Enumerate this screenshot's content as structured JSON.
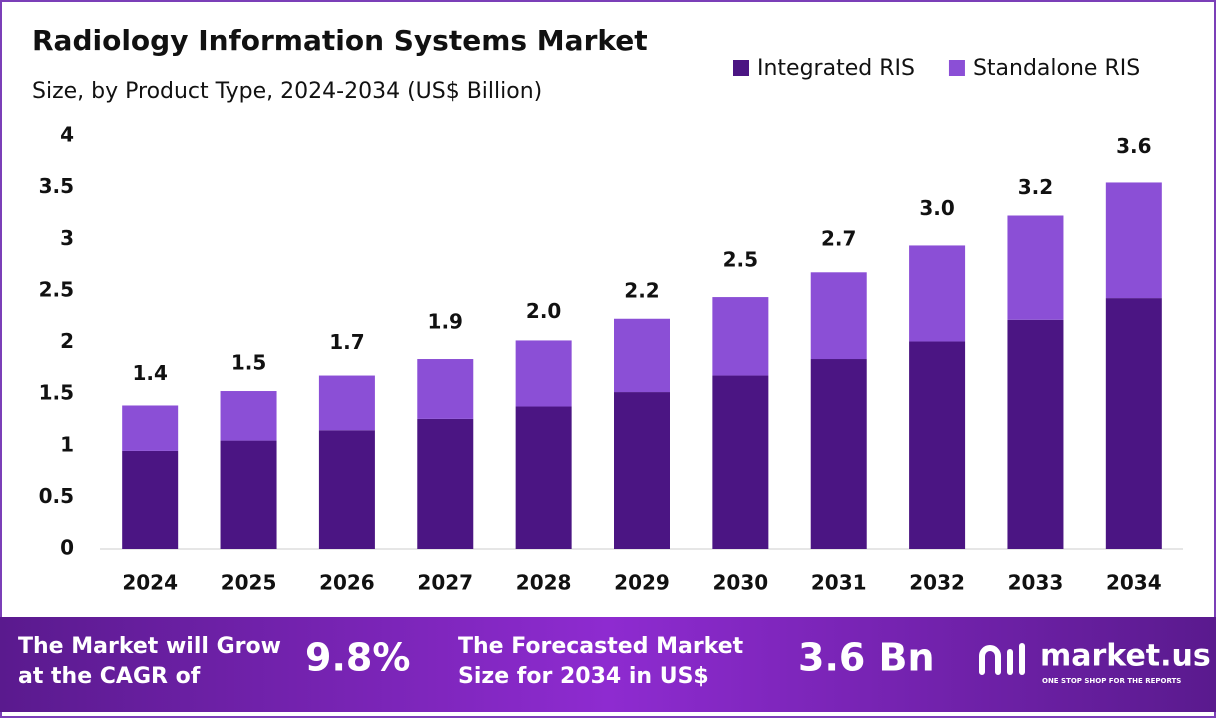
{
  "chart_data": {
    "type": "stacked_bar",
    "title": "Radiology Information Systems Market",
    "subtitle": "Size, by Product Type, 2024-2034 (US$ Billion)",
    "categories": [
      "2024",
      "2025",
      "2026",
      "2027",
      "2028",
      "2029",
      "2030",
      "2031",
      "2032",
      "2033",
      "2034"
    ],
    "series": [
      {
        "name": "Integrated RIS",
        "color": "#4b1583",
        "values": [
          0.95,
          1.05,
          1.15,
          1.26,
          1.38,
          1.52,
          1.68,
          1.84,
          2.01,
          2.22,
          2.43
        ]
      },
      {
        "name": "Standalone RIS",
        "color": "#8b4fd6",
        "values": [
          0.44,
          0.48,
          0.53,
          0.58,
          0.64,
          0.71,
          0.76,
          0.84,
          0.93,
          1.01,
          1.12
        ]
      }
    ],
    "totals": {
      "values": [
        1.4,
        1.5,
        1.7,
        1.9,
        2.0,
        2.2,
        2.5,
        2.7,
        3.0,
        3.2,
        3.6
      ],
      "value_labels": [
        "1.4",
        "1.5",
        "1.7",
        "1.9",
        "2.0",
        "2.2",
        "2.5",
        "2.7",
        "3.0",
        "3.2",
        "3.6"
      ]
    },
    "ylim": [
      0,
      4
    ],
    "yticks": [
      0,
      0.5,
      1,
      1.5,
      2,
      2.5,
      3,
      3.5,
      4
    ],
    "grid": false,
    "legend": "top-right"
  },
  "footer": {
    "cagr_text": [
      "The Market will Grow",
      "at the CAGR of"
    ],
    "cagr_value": "9.8%",
    "forecast_text": [
      "The Forecasted Market",
      "Size for 2034 in US$"
    ],
    "forecast_value": "3.6 Bn",
    "brand": "market.us",
    "tagline": "ONE STOP SHOP FOR THE REPORTS"
  }
}
